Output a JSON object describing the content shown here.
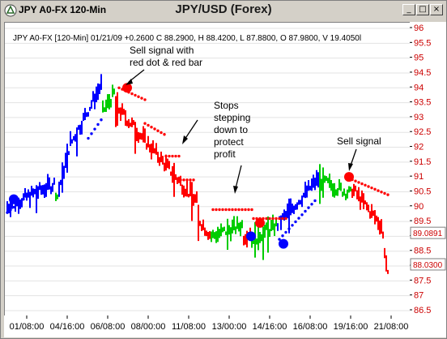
{
  "window": {
    "title_left": "JPY A0-FX 120-Min",
    "title_center": "JPY/USD (Forex)",
    "minimize_icon": "minimize-icon",
    "maximize_icon": "maximize-icon",
    "close_icon": "close-icon",
    "colors": {
      "frame": "#d4d0c8",
      "plot_bg": "#ffffff"
    }
  },
  "info_line": "JPY A0-FX [120-Min] 01/21/09 +0.2600 C 88.2900, H 88.4200, L 87.8800, O 87.9800, V 19.4050l",
  "annotations": [
    {
      "lines": [
        "Sell signal with",
        "red dot & red bar"
      ]
    },
    {
      "lines": [
        "Stops",
        "stepping",
        "down to",
        "protect",
        "profit"
      ]
    },
    {
      "lines": [
        "Sell signal"
      ]
    }
  ],
  "chart_data": {
    "type": "bar",
    "title": "",
    "x_tick_labels": [
      "01/08:00",
      "04/16:00",
      "06/08:00",
      "08/00:00",
      "11/08:00",
      "13/00:00",
      "14/16:00",
      "16/08:00",
      "19/16:00",
      "21/08:00"
    ],
    "y_tick_labels": [
      "86.5",
      "87",
      "87.5",
      "88",
      "88.5",
      "89",
      "89.5",
      "90",
      "90.5",
      "91",
      "91.5",
      "92",
      "92.5",
      "93",
      "93.5",
      "94",
      "94.5",
      "95",
      "95.5",
      "96"
    ],
    "ylim": [
      86.5,
      96
    ],
    "price_labels": [
      "89.0891",
      "88.0300"
    ],
    "price_label_values": [
      89.0891,
      88.03
    ],
    "colors": {
      "up": "#0000ff",
      "neutral": "#00cc00",
      "down": "#ff0000",
      "text_red": "#cc0000",
      "big_red_dot": "#ff0000",
      "big_blue_dot": "#0000ff"
    },
    "segments": [
      {
        "color": "up",
        "x": [
          0,
          60
        ],
        "y": [
          90.0,
          90.8
        ]
      },
      {
        "color": "neutral",
        "x": [
          60,
          64
        ],
        "y": [
          90.5,
          90.2
        ]
      },
      {
        "color": "up",
        "x": [
          64,
          80
        ],
        "y": [
          90.6,
          92.4
        ]
      },
      {
        "color": "up",
        "x": [
          80,
          118
        ],
        "y": [
          92.2,
          94.2
        ]
      },
      {
        "color": "neutral",
        "x": [
          118,
          134
        ],
        "y": [
          93.2,
          93.9
        ]
      },
      {
        "color": "down",
        "x": [
          134,
          236
        ],
        "y": [
          93.4,
          90.1
        ]
      },
      {
        "color": "down",
        "x": [
          236,
          252
        ],
        "y": [
          89.6,
          89.0
        ]
      },
      {
        "color": "neutral",
        "x": [
          252,
          292
        ],
        "y": [
          89.0,
          89.4
        ]
      },
      {
        "color": "down",
        "x": [
          292,
          302
        ],
        "y": [
          89.0,
          89.2
        ]
      },
      {
        "color": "neutral",
        "x": [
          302,
          334
        ],
        "y": [
          88.9,
          89.4
        ]
      },
      {
        "color": "up",
        "x": [
          334,
          386
        ],
        "y": [
          89.4,
          91.0
        ]
      },
      {
        "color": "neutral",
        "x": [
          386,
          426
        ],
        "y": [
          90.9,
          90.4
        ]
      },
      {
        "color": "down",
        "x": [
          426,
          464
        ],
        "y": [
          90.6,
          89.3
        ]
      },
      {
        "color": "down",
        "x": [
          464,
          472
        ],
        "y": [
          89.0,
          87.2
        ]
      }
    ],
    "stop_dots": [
      {
        "color": "up",
        "x": [
          0,
          22
        ],
        "y": [
          89.8,
          90.3
        ]
      },
      {
        "color": "up",
        "x": [
          100,
          118
        ],
        "y": [
          92.3,
          93.0
        ]
      },
      {
        "color": "down",
        "x": [
          138,
          170
        ],
        "y": [
          94.0,
          93.6
        ]
      },
      {
        "color": "down",
        "x": [
          170,
          196
        ],
        "y": [
          92.8,
          92.4
        ]
      },
      {
        "color": "down",
        "x": [
          196,
          214
        ],
        "y": [
          91.7,
          91.7
        ]
      },
      {
        "color": "down",
        "x": [
          214,
          232
        ],
        "y": [
          90.9,
          90.9
        ]
      },
      {
        "color": "down",
        "x": [
          254,
          304
        ],
        "y": [
          89.9,
          89.9
        ]
      },
      {
        "color": "down",
        "x": [
          304,
          346
        ],
        "y": [
          89.6,
          89.6
        ]
      },
      {
        "color": "up",
        "x": [
          336,
          380
        ],
        "y": [
          88.9,
          90.2
        ]
      },
      {
        "color": "down",
        "x": [
          418,
          470
        ],
        "y": [
          91.0,
          90.4
        ]
      }
    ],
    "signal_dots": [
      {
        "color": "big_blue_dot",
        "x": 8,
        "y": 90.25
      },
      {
        "color": "big_red_dot",
        "x": 148,
        "y": 94.0
      },
      {
        "color": "big_blue_dot",
        "x": 301,
        "y": 89.0
      },
      {
        "color": "big_red_dot",
        "x": 312,
        "y": 89.45
      },
      {
        "color": "big_blue_dot",
        "x": 341,
        "y": 88.75
      },
      {
        "color": "big_red_dot",
        "x": 422,
        "y": 91.0
      }
    ]
  }
}
